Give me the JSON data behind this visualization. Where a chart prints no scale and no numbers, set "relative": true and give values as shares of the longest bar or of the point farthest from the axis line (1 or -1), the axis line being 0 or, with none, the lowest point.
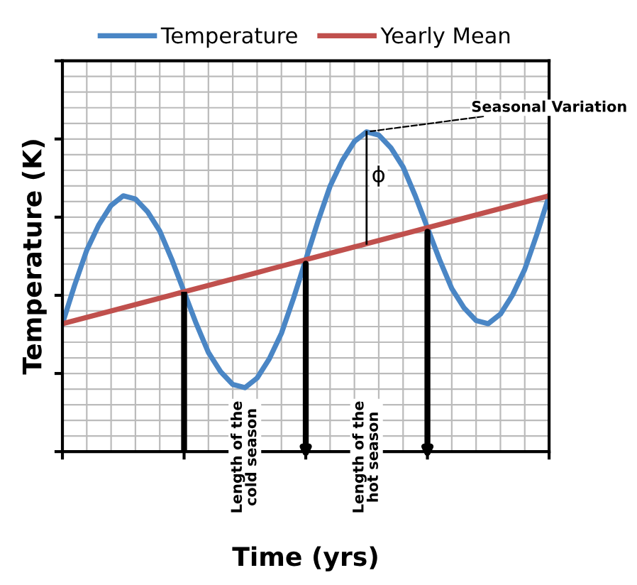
{
  "chart_data": {
    "type": "line",
    "relative": true,
    "xlabel": "Time (yrs)",
    "ylabel": "Temperature (K)",
    "categories": [
      null,
      null,
      null,
      null,
      null,
      null,
      null,
      null,
      null,
      null,
      null,
      null,
      null,
      null,
      null,
      null,
      null,
      null,
      null,
      null,
      null,
      null,
      null,
      null,
      null,
      null,
      null,
      null,
      null,
      null,
      null,
      null,
      null,
      null,
      null,
      null,
      null,
      null,
      null,
      null,
      null
    ],
    "series": [
      {
        "name": "Temperature",
        "color": "#4a86c5",
        "values": [
          0.4,
          0.52,
          0.63,
          0.71,
          0.77,
          0.8,
          0.79,
          0.75,
          0.69,
          0.6,
          0.5,
          0.4,
          0.31,
          0.25,
          0.21,
          0.2,
          0.23,
          0.29,
          0.37,
          0.48,
          0.6,
          0.72,
          0.83,
          0.91,
          0.97,
          1.0,
          0.99,
          0.95,
          0.89,
          0.8,
          0.7,
          0.6,
          0.51,
          0.45,
          0.41,
          0.4,
          0.43,
          0.49,
          0.57,
          0.68,
          0.8
        ]
      },
      {
        "name": "Yearly Mean",
        "color": "#c0504d",
        "values": [
          0.4,
          0.41,
          0.42,
          0.43,
          0.44,
          0.45,
          0.46,
          0.47,
          0.48,
          0.49,
          0.5,
          0.51,
          0.52,
          0.53,
          0.54,
          0.55,
          0.56,
          0.57,
          0.58,
          0.59,
          0.6,
          0.61,
          0.62,
          0.63,
          0.64,
          0.65,
          0.66,
          0.67,
          0.68,
          0.69,
          0.7,
          0.71,
          0.72,
          0.73,
          0.74,
          0.75,
          0.76,
          0.77,
          0.78,
          0.79,
          0.8
        ]
      }
    ],
    "annotations": [
      "Seasonal Variation",
      "ϕ",
      "Length of the\ncold season",
      "Length of the\nhot season"
    ],
    "grid": true,
    "legend": "top",
    "tick_labels": false,
    "marker": "none",
    "line_style": "solid"
  }
}
